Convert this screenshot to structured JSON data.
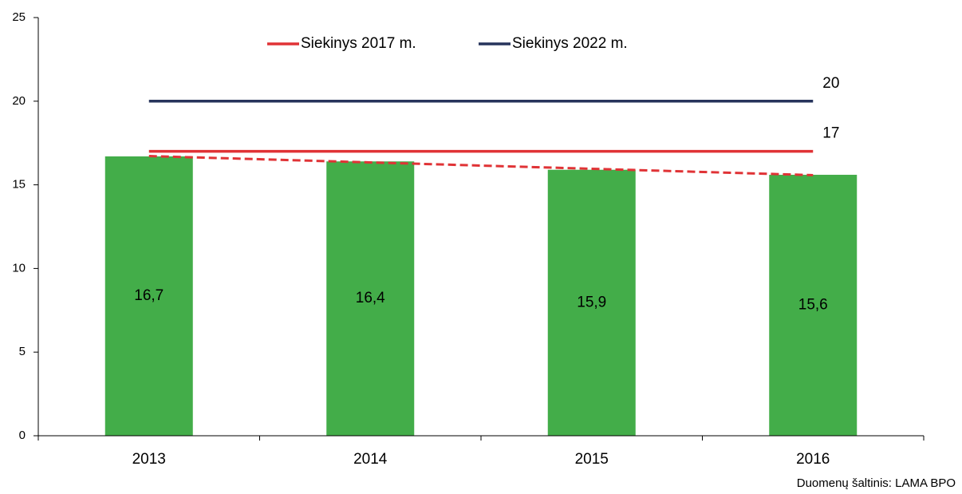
{
  "chart_data": {
    "type": "bar",
    "categories": [
      "2013",
      "2014",
      "2015",
      "2016"
    ],
    "values": [
      16.7,
      16.4,
      15.9,
      15.6
    ],
    "value_labels": [
      "16,7",
      "16,4",
      "15,9",
      "15,6"
    ],
    "color": "#43ad49",
    "trendline": {
      "color": "#e03336",
      "style": "dashed"
    },
    "series": [
      {
        "name": "Siekinys 2017 m.",
        "color": "#e03336",
        "values": [
          17,
          17,
          17,
          17
        ]
      },
      {
        "name": "Siekinys 2022 m.",
        "color": "#27345c",
        "values": [
          20,
          20,
          20,
          20
        ]
      }
    ],
    "ylim": [
      0,
      25
    ],
    "yticks": [
      0,
      5,
      10,
      15,
      20,
      25
    ],
    "source": "Duomenų šaltinis: LAMA BPO"
  }
}
